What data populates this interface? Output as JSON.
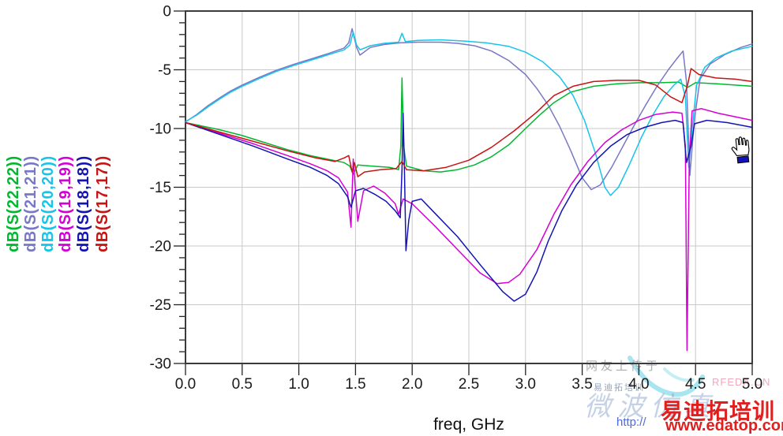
{
  "chart_data": {
    "type": "line",
    "title": "",
    "xlabel": "freq, GHz",
    "ylabel": "",
    "xlim": [
      0,
      5
    ],
    "ylim": [
      -30,
      0
    ],
    "x_ticks": [
      0,
      0.5,
      1.0,
      1.5,
      2.0,
      2.5,
      3.0,
      3.5,
      4.0,
      4.5,
      5.0
    ],
    "x_tick_labels": [
      "0.0",
      "0.5",
      "1.0",
      "1.5",
      "2.0",
      "2.5",
      "3.0",
      "3.5",
      "4.0",
      "4.5",
      "5.0"
    ],
    "y_ticks": [
      0,
      -5,
      -10,
      -15,
      -20,
      -25,
      -30
    ],
    "y_tick_labels": [
      "0",
      "-5",
      "-10",
      "-15",
      "-20",
      "-25",
      "-30"
    ],
    "y_minor_step": 1,
    "grid": true,
    "grid_color": "#c9c9c9",
    "border_color": "#3a3a3a",
    "tick_color": "#222222",
    "label_color": "#1a1a1a",
    "legend_position": "left-rotated",
    "series": [
      {
        "name": "dB(S(22,22))",
        "color": "#00b82e",
        "points": [
          [
            0,
            -9.5
          ],
          [
            0.15,
            -9.8
          ],
          [
            0.3,
            -10.1
          ],
          [
            0.5,
            -10.6
          ],
          [
            0.7,
            -11.2
          ],
          [
            0.9,
            -11.8
          ],
          [
            1.1,
            -12.3
          ],
          [
            1.25,
            -12.6
          ],
          [
            1.4,
            -12.9
          ],
          [
            1.45,
            -13.2
          ],
          [
            1.48,
            -13.9
          ],
          [
            1.52,
            -13.1
          ],
          [
            1.65,
            -13.2
          ],
          [
            1.8,
            -13.3
          ],
          [
            1.88,
            -13.5
          ],
          [
            1.9,
            -11.5
          ],
          [
            1.91,
            -5.7
          ],
          [
            1.925,
            -11.5
          ],
          [
            1.95,
            -13.2
          ],
          [
            2.1,
            -13.6
          ],
          [
            2.25,
            -13.7
          ],
          [
            2.4,
            -13.5
          ],
          [
            2.55,
            -13.1
          ],
          [
            2.7,
            -12.4
          ],
          [
            2.85,
            -11.4
          ],
          [
            3.0,
            -10.0
          ],
          [
            3.12,
            -8.9
          ],
          [
            3.25,
            -7.8
          ],
          [
            3.4,
            -6.9
          ],
          [
            3.6,
            -6.4
          ],
          [
            3.8,
            -6.2
          ],
          [
            4.0,
            -6.1
          ],
          [
            4.2,
            -6.1
          ],
          [
            4.35,
            -6.05
          ],
          [
            4.43,
            -6.5
          ],
          [
            4.5,
            -6.1
          ],
          [
            4.7,
            -6.2
          ],
          [
            5.0,
            -6.4
          ]
        ]
      },
      {
        "name": "dB(S(21,21))",
        "color": "#7878c8",
        "points": [
          [
            0,
            -9.45
          ],
          [
            0.1,
            -8.8
          ],
          [
            0.2,
            -8.05
          ],
          [
            0.3,
            -7.4
          ],
          [
            0.4,
            -6.8
          ],
          [
            0.5,
            -6.3
          ],
          [
            0.65,
            -5.65
          ],
          [
            0.8,
            -5.05
          ],
          [
            0.95,
            -4.55
          ],
          [
            1.1,
            -4.1
          ],
          [
            1.25,
            -3.65
          ],
          [
            1.4,
            -3.15
          ],
          [
            1.44,
            -2.7
          ],
          [
            1.47,
            -1.5
          ],
          [
            1.51,
            -3.1
          ],
          [
            1.54,
            -3.75
          ],
          [
            1.63,
            -3.1
          ],
          [
            1.75,
            -2.85
          ],
          [
            1.9,
            -2.7
          ],
          [
            2.05,
            -2.65
          ],
          [
            2.25,
            -2.65
          ],
          [
            2.4,
            -2.75
          ],
          [
            2.55,
            -2.95
          ],
          [
            2.7,
            -3.4
          ],
          [
            2.85,
            -4.2
          ],
          [
            3.0,
            -5.4
          ],
          [
            3.1,
            -6.6
          ],
          [
            3.2,
            -8.0
          ],
          [
            3.3,
            -9.8
          ],
          [
            3.4,
            -11.9
          ],
          [
            3.5,
            -14.2
          ],
          [
            3.58,
            -15.2
          ],
          [
            3.66,
            -14.8
          ],
          [
            3.76,
            -13.3
          ],
          [
            3.86,
            -11.5
          ],
          [
            3.96,
            -9.7
          ],
          [
            4.06,
            -8.0
          ],
          [
            4.16,
            -6.4
          ],
          [
            4.26,
            -5.0
          ],
          [
            4.34,
            -4.0
          ],
          [
            4.39,
            -3.4
          ],
          [
            4.42,
            -6.0
          ],
          [
            4.45,
            -14.0
          ],
          [
            4.49,
            -9.2
          ],
          [
            4.54,
            -5.8
          ],
          [
            4.63,
            -4.5
          ],
          [
            4.76,
            -3.7
          ],
          [
            4.9,
            -3.1
          ],
          [
            5.0,
            -2.8
          ]
        ]
      },
      {
        "name": "dB(S(20,20))",
        "color": "#18c4e8",
        "points": [
          [
            0,
            -9.4
          ],
          [
            0.1,
            -8.85
          ],
          [
            0.2,
            -8.15
          ],
          [
            0.3,
            -7.5
          ],
          [
            0.4,
            -6.9
          ],
          [
            0.5,
            -6.4
          ],
          [
            0.65,
            -5.75
          ],
          [
            0.8,
            -5.15
          ],
          [
            0.95,
            -4.65
          ],
          [
            1.1,
            -4.2
          ],
          [
            1.25,
            -3.75
          ],
          [
            1.4,
            -3.3
          ],
          [
            1.45,
            -2.9
          ],
          [
            1.48,
            -1.8
          ],
          [
            1.51,
            -2.9
          ],
          [
            1.54,
            -3.3
          ],
          [
            1.63,
            -2.95
          ],
          [
            1.75,
            -2.75
          ],
          [
            1.88,
            -2.65
          ],
          [
            1.91,
            -1.9
          ],
          [
            1.94,
            -2.6
          ],
          [
            2.05,
            -2.5
          ],
          [
            2.25,
            -2.45
          ],
          [
            2.45,
            -2.55
          ],
          [
            2.65,
            -2.7
          ],
          [
            2.85,
            -3.0
          ],
          [
            3.0,
            -3.5
          ],
          [
            3.15,
            -4.3
          ],
          [
            3.3,
            -5.6
          ],
          [
            3.42,
            -7.2
          ],
          [
            3.52,
            -9.3
          ],
          [
            3.62,
            -12.2
          ],
          [
            3.7,
            -15.0
          ],
          [
            3.75,
            -15.7
          ],
          [
            3.82,
            -15.0
          ],
          [
            3.92,
            -13.0
          ],
          [
            4.02,
            -10.8
          ],
          [
            4.12,
            -8.9
          ],
          [
            4.22,
            -7.3
          ],
          [
            4.31,
            -6.3
          ],
          [
            4.37,
            -5.8
          ],
          [
            4.41,
            -7.3
          ],
          [
            4.44,
            -13.3
          ],
          [
            4.47,
            -10.0
          ],
          [
            4.51,
            -6.3
          ],
          [
            4.58,
            -4.8
          ],
          [
            4.68,
            -4.0
          ],
          [
            4.82,
            -3.4
          ],
          [
            5.0,
            -3.0
          ]
        ]
      },
      {
        "name": "dB(S(19,19))",
        "color": "#d400d4",
        "points": [
          [
            0,
            -9.5
          ],
          [
            0.3,
            -10.4
          ],
          [
            0.6,
            -11.3
          ],
          [
            0.9,
            -12.3
          ],
          [
            1.1,
            -13.0
          ],
          [
            1.25,
            -13.6
          ],
          [
            1.35,
            -14.2
          ],
          [
            1.43,
            -15.4
          ],
          [
            1.46,
            -18.4
          ],
          [
            1.48,
            -12.6
          ],
          [
            1.52,
            -17.9
          ],
          [
            1.57,
            -15.3
          ],
          [
            1.66,
            -14.9
          ],
          [
            1.76,
            -15.5
          ],
          [
            1.85,
            -16.4
          ],
          [
            1.88,
            -17.3
          ],
          [
            1.92,
            -16.0
          ],
          [
            2.0,
            -16.4
          ],
          [
            2.2,
            -18.3
          ],
          [
            2.4,
            -20.3
          ],
          [
            2.6,
            -22.3
          ],
          [
            2.75,
            -23.2
          ],
          [
            2.85,
            -23.1
          ],
          [
            2.95,
            -22.4
          ],
          [
            3.1,
            -20.3
          ],
          [
            3.25,
            -17.3
          ],
          [
            3.4,
            -14.8
          ],
          [
            3.55,
            -12.8
          ],
          [
            3.7,
            -11.2
          ],
          [
            3.85,
            -10.1
          ],
          [
            4.0,
            -9.3
          ],
          [
            4.15,
            -8.8
          ],
          [
            4.3,
            -8.6
          ],
          [
            4.38,
            -8.7
          ],
          [
            4.41,
            -11.5
          ],
          [
            4.425,
            -28.9
          ],
          [
            4.445,
            -12.5
          ],
          [
            4.47,
            -8.5
          ],
          [
            4.55,
            -8.3
          ],
          [
            4.7,
            -8.7
          ],
          [
            4.85,
            -9.0
          ],
          [
            5.0,
            -9.3
          ]
        ]
      },
      {
        "name": "dB(S(18,18))",
        "color": "#1414b4",
        "points": [
          [
            0,
            -9.5
          ],
          [
            0.3,
            -10.5
          ],
          [
            0.6,
            -11.5
          ],
          [
            0.9,
            -12.6
          ],
          [
            1.1,
            -13.3
          ],
          [
            1.25,
            -14.0
          ],
          [
            1.35,
            -14.7
          ],
          [
            1.43,
            -15.8
          ],
          [
            1.46,
            -16.7
          ],
          [
            1.5,
            -15.3
          ],
          [
            1.57,
            -15.1
          ],
          [
            1.67,
            -15.6
          ],
          [
            1.77,
            -16.2
          ],
          [
            1.85,
            -17.0
          ],
          [
            1.895,
            -17.6
          ],
          [
            1.91,
            -13.5
          ],
          [
            1.92,
            -8.7
          ],
          [
            1.93,
            -12.5
          ],
          [
            1.945,
            -20.4
          ],
          [
            1.97,
            -17.8
          ],
          [
            2.0,
            -16.2
          ],
          [
            2.08,
            -16.0
          ],
          [
            2.2,
            -17.2
          ],
          [
            2.4,
            -19.2
          ],
          [
            2.6,
            -21.6
          ],
          [
            2.8,
            -23.9
          ],
          [
            2.9,
            -24.7
          ],
          [
            3.0,
            -24.1
          ],
          [
            3.1,
            -22.2
          ],
          [
            3.2,
            -19.6
          ],
          [
            3.32,
            -17.0
          ],
          [
            3.45,
            -14.8
          ],
          [
            3.6,
            -12.9
          ],
          [
            3.75,
            -11.5
          ],
          [
            3.9,
            -10.5
          ],
          [
            4.05,
            -9.9
          ],
          [
            4.2,
            -9.5
          ],
          [
            4.32,
            -9.3
          ],
          [
            4.39,
            -9.5
          ],
          [
            4.42,
            -12.9
          ],
          [
            4.46,
            -11.5
          ],
          [
            4.49,
            -9.6
          ],
          [
            4.6,
            -9.3
          ],
          [
            4.78,
            -9.5
          ],
          [
            5.0,
            -9.9
          ]
        ]
      },
      {
        "name": "dB(S(17,17))",
        "color": "#c81414",
        "points": [
          [
            0,
            -9.5
          ],
          [
            0.3,
            -10.3
          ],
          [
            0.6,
            -11.1
          ],
          [
            0.9,
            -11.9
          ],
          [
            1.15,
            -12.5
          ],
          [
            1.32,
            -12.8
          ],
          [
            1.4,
            -12.5
          ],
          [
            1.44,
            -12.3
          ],
          [
            1.47,
            -13.7
          ],
          [
            1.49,
            -12.9
          ],
          [
            1.52,
            -14.1
          ],
          [
            1.58,
            -13.7
          ],
          [
            1.72,
            -13.5
          ],
          [
            1.86,
            -13.4
          ],
          [
            1.91,
            -12.8
          ],
          [
            1.95,
            -13.5
          ],
          [
            2.1,
            -13.6
          ],
          [
            2.3,
            -13.3
          ],
          [
            2.5,
            -12.7
          ],
          [
            2.7,
            -11.6
          ],
          [
            2.9,
            -10.2
          ],
          [
            3.1,
            -8.6
          ],
          [
            3.25,
            -7.2
          ],
          [
            3.42,
            -6.4
          ],
          [
            3.6,
            -6.0
          ],
          [
            3.8,
            -5.9
          ],
          [
            4.0,
            -5.9
          ],
          [
            4.15,
            -6.3
          ],
          [
            4.28,
            -7.3
          ],
          [
            4.38,
            -7.8
          ],
          [
            4.43,
            -6.3
          ],
          [
            4.46,
            -4.9
          ],
          [
            4.53,
            -5.4
          ],
          [
            4.68,
            -5.7
          ],
          [
            4.85,
            -5.8
          ],
          [
            5.0,
            -6.0
          ]
        ]
      }
    ]
  },
  "watermarks": {
    "uploader_note": "网友上传于",
    "tiny_tag": "易迪拓培训",
    "rfeda": "RFEDA.CN",
    "script_text": "微波仿真",
    "http_prefix": "http://",
    "brand_cn": "易迪拓培训",
    "brand_url": "www.edatop.com",
    "brand_color": "#e01f1f"
  },
  "cursor": {
    "type": "hand-drag",
    "cuff_color": "#1212b8"
  }
}
